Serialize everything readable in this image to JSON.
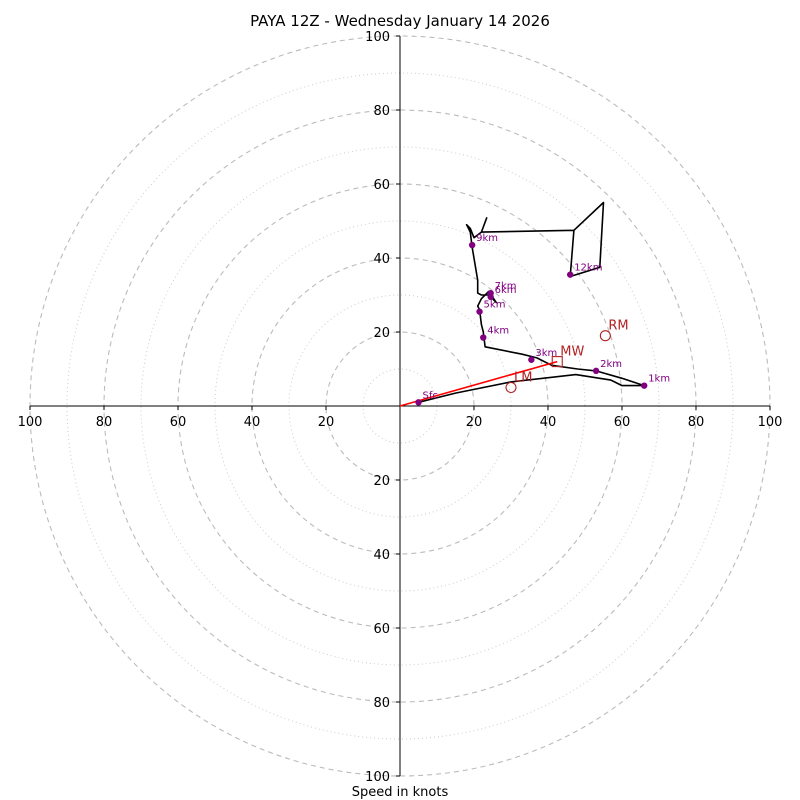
{
  "chart_data": {
    "type": "hodograph",
    "title": "PAYA 12Z - Wednesday January 14 2026",
    "xlabel": "Speed in knots",
    "units": "knots",
    "max_speed": 100,
    "range_rings_major": [
      20,
      40,
      60,
      80,
      100
    ],
    "range_rings_minor": [
      10,
      30,
      50,
      70,
      90
    ],
    "tick_labels": {
      "left": [
        "100",
        "80",
        "60",
        "40",
        "20"
      ],
      "right": [
        "20",
        "40",
        "60",
        "80",
        "100"
      ],
      "top": [
        "100",
        "80",
        "60",
        "40",
        "20"
      ],
      "bottom": [
        "20",
        "40",
        "60",
        "80",
        "100"
      ]
    },
    "trace": [
      {
        "u": 5,
        "v": 1
      },
      {
        "u": 15,
        "v": 3.5
      },
      {
        "u": 30,
        "v": 6.5
      },
      {
        "u": 47.5,
        "v": 8.5
      },
      {
        "u": 57,
        "v": 7
      },
      {
        "u": 60,
        "v": 5.5
      },
      {
        "u": 66,
        "v": 5.5
      },
      {
        "u": 60,
        "v": 7.5
      },
      {
        "u": 53,
        "v": 9.5
      },
      {
        "u": 48,
        "v": 10
      },
      {
        "u": 41,
        "v": 11
      },
      {
        "u": 37,
        "v": 13
      },
      {
        "u": 33,
        "v": 14
      },
      {
        "u": 23,
        "v": 16
      },
      {
        "u": 22.5,
        "v": 20
      },
      {
        "u": 22,
        "v": 22
      },
      {
        "u": 21.5,
        "v": 26
      },
      {
        "u": 21,
        "v": 27
      },
      {
        "u": 22,
        "v": 29
      },
      {
        "u": 24,
        "v": 31
      },
      {
        "u": 26,
        "v": 28
      },
      {
        "u": 24,
        "v": 30
      },
      {
        "u": 22,
        "v": 30
      },
      {
        "u": 21,
        "v": 30.5
      },
      {
        "u": 21,
        "v": 34
      },
      {
        "u": 19.5,
        "v": 43
      },
      {
        "u": 19,
        "v": 47
      },
      {
        "u": 18,
        "v": 49
      },
      {
        "u": 19,
        "v": 48
      },
      {
        "u": 20,
        "v": 45.5
      },
      {
        "u": 22,
        "v": 47
      },
      {
        "u": 47,
        "v": 47.5
      },
      {
        "u": 55,
        "v": 55
      },
      {
        "u": 54,
        "v": 37.5
      },
      {
        "u": 46,
        "v": 35
      },
      {
        "u": 47,
        "v": 47.5
      },
      {
        "u": 22,
        "v": 47
      },
      {
        "u": 23.5,
        "v": 51
      }
    ],
    "height_markers": [
      {
        "label": "Sfc",
        "u": 5,
        "v": 1
      },
      {
        "label": "1km",
        "u": 66,
        "v": 5.5
      },
      {
        "label": "2km",
        "u": 53,
        "v": 9.5
      },
      {
        "label": "3km",
        "u": 35.5,
        "v": 12.5
      },
      {
        "label": "4km",
        "u": 22.5,
        "v": 18.5
      },
      {
        "label": "5km",
        "u": 21.5,
        "v": 25.5
      },
      {
        "label": "6km",
        "u": 24.5,
        "v": 29.5
      },
      {
        "label": "7km",
        "u": 24.5,
        "v": 30.5
      },
      {
        "label": "9km",
        "u": 19.5,
        "v": 43.5
      },
      {
        "label": "12km",
        "u": 46,
        "v": 35.5
      }
    ],
    "storm_motion": [
      {
        "label": "RM",
        "u": 55.5,
        "v": 19,
        "shape": "circle"
      },
      {
        "label": "LM",
        "u": 30,
        "v": 5,
        "shape": "circle"
      },
      {
        "label": "MW",
        "u": 42.5,
        "v": 12,
        "shape": "square"
      }
    ],
    "mean_wind_vector": {
      "from": {
        "u": 0,
        "v": 0
      },
      "to": {
        "u": 42.5,
        "v": 12
      }
    },
    "colors": {
      "trace": "#000000",
      "markers": "#800080",
      "storm_motion": "#b22222",
      "vector": "#ff0000",
      "rings": "#bbbbbb"
    }
  }
}
